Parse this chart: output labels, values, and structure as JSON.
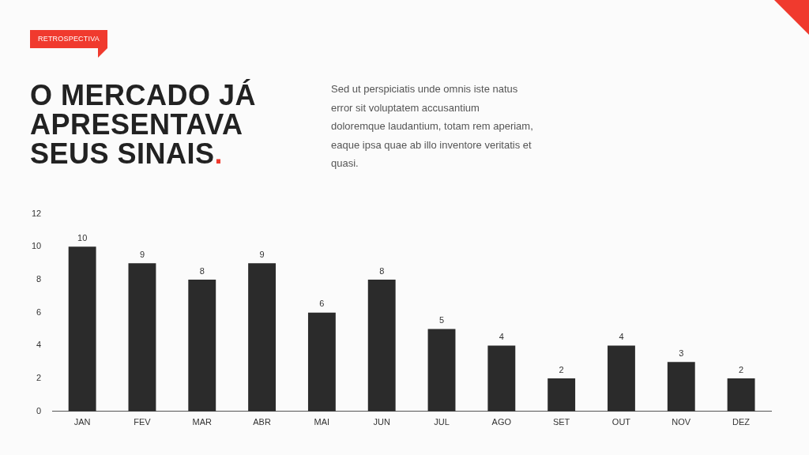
{
  "chart_data": {
    "type": "bar",
    "title": "O MERCADO JÁ APRESENTAVA SEUS SINAIS.",
    "subtitle": "Sed ut perspiciatis unde omnis iste natus error sit voluptatem accusantium doloremque laudantium, totam rem aperiam, eaque ipsa quae ab illo inventore veritatis et quasi.",
    "annotations": [
      "RETROSPECTIVA"
    ],
    "categories": [
      "JAN",
      "FEV",
      "MAR",
      "ABR",
      "MAI",
      "JUN",
      "JUL",
      "AGO",
      "SET",
      "OUT",
      "NOV",
      "DEZ"
    ],
    "values": [
      10,
      9,
      8,
      9,
      6,
      8,
      5,
      4,
      2,
      4,
      3,
      2
    ],
    "color": "#2b2b2b",
    "ylim": [
      0,
      12
    ],
    "yticks": [
      0,
      2,
      4,
      6,
      8,
      10,
      12
    ],
    "grid": false,
    "legend": false,
    "data_labels": true
  }
}
